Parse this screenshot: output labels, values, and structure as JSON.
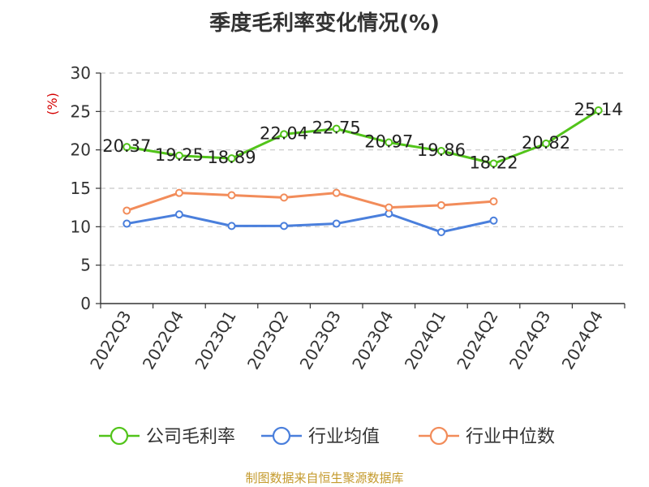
{
  "chart_data": {
    "type": "line",
    "title": "季度毛利率变化情况(%)",
    "ylabel": "(%)",
    "xlabel": "",
    "ylim": [
      0,
      30
    ],
    "yticks": [
      0,
      5,
      10,
      15,
      20,
      25,
      30
    ],
    "grid": "horizontal-dashed",
    "legend_position": "bottom",
    "categories": [
      "2022Q3",
      "2022Q4",
      "2023Q1",
      "2023Q2",
      "2023Q3",
      "2023Q4",
      "2024Q1",
      "2024Q2",
      "2024Q3",
      "2024Q4"
    ],
    "series": [
      {
        "name": "公司毛利率",
        "color": "#52c41a",
        "show_labels": true,
        "values": [
          20.37,
          19.25,
          18.89,
          22.04,
          22.75,
          20.97,
          19.86,
          18.22,
          20.82,
          25.14
        ]
      },
      {
        "name": "行业均值",
        "color": "#4a7fdc",
        "show_labels": false,
        "values": [
          10.4,
          11.6,
          10.1,
          10.1,
          10.4,
          11.7,
          9.3,
          10.8,
          null,
          null
        ]
      },
      {
        "name": "行业中位数",
        "color": "#f28c5a",
        "show_labels": false,
        "values": [
          12.1,
          14.4,
          14.1,
          13.8,
          14.4,
          12.5,
          12.8,
          13.3,
          null,
          null
        ]
      }
    ]
  },
  "source_note": "制图数据来自恒生聚源数据库"
}
